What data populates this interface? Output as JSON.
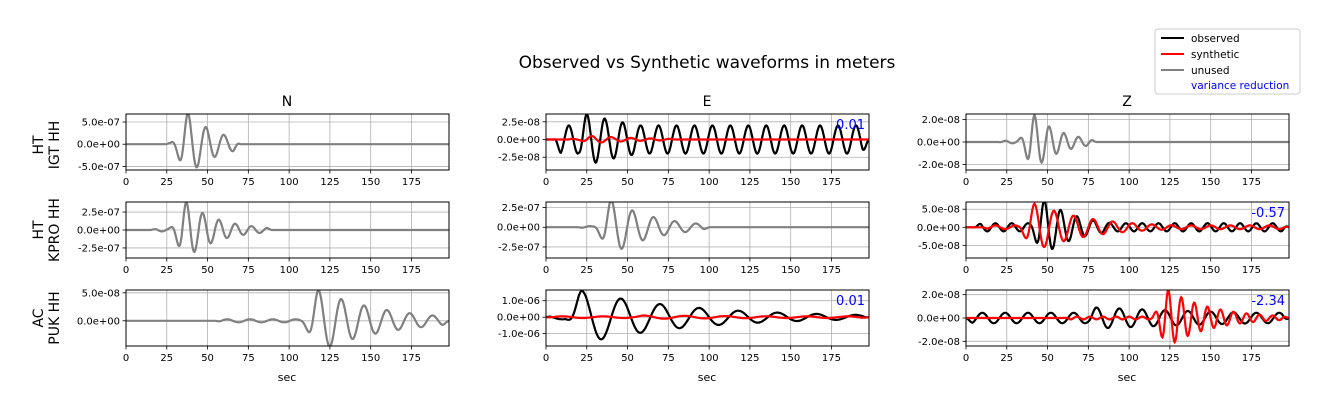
{
  "title": "Observed vs Synthetic waveforms in meters",
  "legend": {
    "placement": "top-right",
    "entries": [
      {
        "label": "observed",
        "color": "#000000"
      },
      {
        "label": "synthetic",
        "color": "#ff0000"
      },
      {
        "label": "unused",
        "color": "#808080"
      },
      {
        "label": "variance reduction",
        "color": "#0000ff"
      }
    ]
  },
  "columns": [
    "N",
    "E",
    "Z"
  ],
  "rows": [
    {
      "label_line1": "HT",
      "label_line2": "IGT HH"
    },
    {
      "label_line1": "HT",
      "label_line2": "KPRO HH"
    },
    {
      "label_line1": "AC",
      "label_line2": "PUK HH"
    }
  ],
  "xlabel": "sec",
  "xticks": [
    0,
    25,
    50,
    75,
    100,
    125,
    150,
    175
  ],
  "xtick_labels": [
    "0",
    "25",
    "50",
    "75",
    "100",
    "125",
    "150",
    "175"
  ],
  "chart_data": {
    "type": "line",
    "title": "Observed vs Synthetic waveforms in meters",
    "xlabel": "sec",
    "xlim": [
      0,
      198
    ],
    "grid": true,
    "panels": [
      {
        "row": 0,
        "col": 0,
        "component": "N",
        "station": "HT IGT HH",
        "unused": true,
        "ylim": [
          -5.8e-07,
          6.8e-07
        ],
        "yticks": [
          -5e-07,
          0,
          5e-07
        ],
        "ytick_labels": [
          "-5.0e-07",
          "0.0e+00",
          "5.0e-07"
        ],
        "vr": "",
        "series": [
          {
            "name": "unused",
            "kind": "wave",
            "params": {
              "amp": 7e-07,
              "t0": 24,
              "t1": 70,
              "peak": 38,
              "period": 11,
              "decay": 0.6,
              "tail": 0.06
            }
          }
        ]
      },
      {
        "row": 0,
        "col": 1,
        "component": "E",
        "station": "HT IGT HH",
        "unused": false,
        "ylim": [
          -4.3e-08,
          3.6e-08
        ],
        "yticks": [
          -2.5e-08,
          0,
          2.5e-08
        ],
        "ytick_labels": [
          "-2.5e-08",
          "0.0e+00",
          "2.5e-08"
        ],
        "vr": "0.01",
        "series": [
          {
            "name": "observed",
            "kind": "wave",
            "params": {
              "amp": 3.6e-08,
              "t0": 5,
              "t1": 198,
              "peak": 25,
              "period": 11,
              "decay": 0.2,
              "tail": 0.55
            }
          },
          {
            "name": "synthetic",
            "kind": "wave",
            "params": {
              "amp": 5e-09,
              "t0": 12,
              "t1": 80,
              "peak": 28,
              "period": 12,
              "decay": 0.4,
              "tail": 0.2
            }
          }
        ]
      },
      {
        "row": 0,
        "col": 2,
        "component": "Z",
        "station": "HT IGT HH",
        "unused": true,
        "ylim": [
          -2.5e-08,
          2.5e-08
        ],
        "yticks": [
          -2e-08,
          0,
          2e-08
        ],
        "ytick_labels": [
          "-2.0e-08",
          "0.0e+00",
          "2.0e-08"
        ],
        "vr": "",
        "series": [
          {
            "name": "unused",
            "kind": "wave",
            "params": {
              "amp": 2.4e-08,
              "t0": 20,
              "t1": 80,
              "peak": 42,
              "period": 9,
              "decay": 0.55,
              "tail": 0.05
            }
          }
        ]
      },
      {
        "row": 1,
        "col": 0,
        "component": "N",
        "station": "HT KPRO HH",
        "unused": true,
        "ylim": [
          -3.9e-07,
          3.9e-07
        ],
        "yticks": [
          -2.5e-07,
          0,
          2.5e-07
        ],
        "ytick_labels": [
          "-2.5e-07",
          "0.0e+00",
          "2.5e-07"
        ],
        "vr": "",
        "series": [
          {
            "name": "unused",
            "kind": "wave",
            "params": {
              "amp": 3.9e-07,
              "t0": 15,
              "t1": 90,
              "peak": 37,
              "period": 10,
              "decay": 0.5,
              "tail": 0.05
            }
          }
        ]
      },
      {
        "row": 1,
        "col": 1,
        "component": "E",
        "station": "HT KPRO HH",
        "unused": true,
        "ylim": [
          -3.9e-07,
          3.2e-07
        ],
        "yticks": [
          -2.5e-07,
          0,
          2.5e-07
        ],
        "ytick_labels": [
          "-2.5e-07",
          "0.0e+00",
          "2.5e-07"
        ],
        "vr": "",
        "series": [
          {
            "name": "unused",
            "kind": "wave",
            "params": {
              "amp": 3.5e-07,
              "t0": 20,
              "t1": 100,
              "peak": 40,
              "period": 13,
              "decay": 0.5,
              "tail": 0.04
            }
          }
        ]
      },
      {
        "row": 1,
        "col": 2,
        "component": "Z",
        "station": "HT KPRO HH",
        "unused": false,
        "ylim": [
          -8.5e-08,
          7e-08
        ],
        "yticks": [
          -5e-08,
          0,
          5e-08
        ],
        "ytick_labels": [
          "-5.0e-08",
          "0.0e+00",
          "5.0e-08"
        ],
        "vr": "-0.57",
        "series": [
          {
            "name": "observed",
            "kind": "wave",
            "params": {
              "amp": 7.5e-08,
              "t0": 5,
              "t1": 198,
              "peak": 48,
              "period": 10,
              "decay": 0.45,
              "tail": 0.15
            }
          },
          {
            "name": "synthetic",
            "kind": "wave",
            "params": {
              "amp": 6.5e-08,
              "t0": 10,
              "t1": 198,
              "peak": 42,
              "period": 12,
              "decay": 0.35,
              "tail": 0.08
            }
          }
        ]
      },
      {
        "row": 2,
        "col": 0,
        "component": "N",
        "station": "AC PUK HH",
        "unused": true,
        "ylim": [
          -4.5e-08,
          5.5e-08
        ],
        "yticks": [
          0,
          5e-08
        ],
        "ytick_labels": [
          "0.0e+00",
          "5.0e-08"
        ],
        "vr": "",
        "series": [
          {
            "name": "unused",
            "kind": "wave",
            "params": {
              "amp": 5.5e-08,
              "t0": 55,
              "t1": 198,
              "peak": 118,
              "period": 14,
              "decay": 0.35,
              "tail": 0.05
            }
          }
        ]
      },
      {
        "row": 2,
        "col": 1,
        "component": "E",
        "station": "AC PUK HH",
        "unused": false,
        "ylim": [
          -1.75e-06,
          1.65e-06
        ],
        "yticks": [
          -1e-06,
          0,
          1e-06
        ],
        "ytick_labels": [
          "-1.0e-06",
          "0.0e+00",
          "1.0e-06"
        ],
        "vr": "0.01",
        "series": [
          {
            "name": "observed",
            "kind": "wave",
            "params": {
              "amp": 1.6e-06,
              "t0": 0,
              "t1": 198,
              "peak": 22,
              "period": 24,
              "decay": 0.35,
              "tail": 0.08
            }
          },
          {
            "name": "synthetic",
            "kind": "wave",
            "params": {
              "amp": 1e-07,
              "t0": 0,
              "t1": 198,
              "peak": 60,
              "period": 25,
              "decay": 0.2,
              "tail": 0.5
            }
          }
        ]
      },
      {
        "row": 2,
        "col": 2,
        "component": "Z",
        "station": "AC PUK HH",
        "unused": false,
        "ylim": [
          -2.4e-08,
          2.4e-08
        ],
        "yticks": [
          -2e-08,
          0,
          2e-08
        ],
        "ytick_labels": [
          "-2.0e-08",
          "0.0e+00",
          "2.0e-08"
        ],
        "vr": "-2.34",
        "series": [
          {
            "name": "observed",
            "kind": "wave",
            "params": {
              "amp": 9e-09,
              "t0": 0,
              "t1": 198,
              "peak": 80,
              "period": 14,
              "decay": 0.1,
              "tail": 0.5
            }
          },
          {
            "name": "synthetic",
            "kind": "wave",
            "params": {
              "amp": 2.4e-08,
              "t0": 60,
              "t1": 198,
              "peak": 124,
              "period": 8,
              "decay": 0.3,
              "tail": 0.05
            }
          }
        ]
      }
    ]
  }
}
